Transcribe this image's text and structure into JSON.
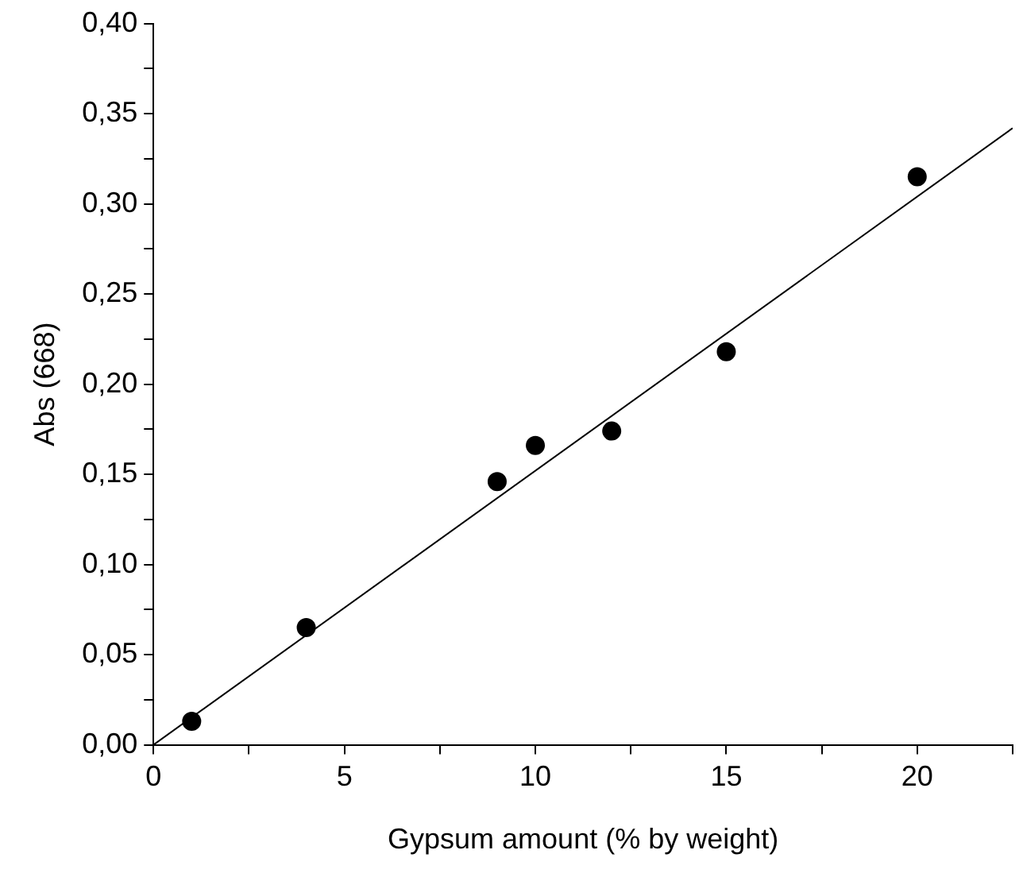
{
  "chart_data": {
    "type": "scatter",
    "xlabel": "Gypsum amount (% by weight)",
    "ylabel": "Abs (668)",
    "xlim": [
      0,
      22.5
    ],
    "ylim": [
      0,
      0.4
    ],
    "xticks": [
      0,
      {
        "value": 2.5,
        "label": null
      },
      5,
      {
        "value": 7.5,
        "label": null
      },
      10,
      {
        "value": 12.5,
        "label": null
      },
      15,
      {
        "value": 17.5,
        "label": null
      },
      20,
      {
        "value": 22.5,
        "label": null
      }
    ],
    "yticks": [
      {
        "value": 0,
        "label": "0,00"
      },
      {
        "value": 0.025,
        "label": null
      },
      {
        "value": 0.05,
        "label": "0,05"
      },
      {
        "value": 0.075,
        "label": null
      },
      {
        "value": 0.1,
        "label": "0,10"
      },
      {
        "value": 0.125,
        "label": null
      },
      {
        "value": 0.15,
        "label": "0,15"
      },
      {
        "value": 0.175,
        "label": null
      },
      {
        "value": 0.2,
        "label": "0,20"
      },
      {
        "value": 0.225,
        "label": null
      },
      {
        "value": 0.25,
        "label": "0,25"
      },
      {
        "value": 0.275,
        "label": null
      },
      {
        "value": 0.3,
        "label": "0,30"
      },
      {
        "value": 0.325,
        "label": null
      },
      {
        "value": 0.35,
        "label": "0,35"
      },
      {
        "value": 0.375,
        "label": null
      },
      {
        "value": 0.4,
        "label": "0,40"
      }
    ],
    "grid": false,
    "legend": false,
    "series": [
      {
        "type": "scatter",
        "color": "#000000",
        "marker": "circle",
        "x": [
          1,
          4,
          9,
          10,
          12,
          15,
          20
        ],
        "values": [
          0.013,
          0.065,
          0.146,
          0.166,
          0.174,
          0.218,
          0.315
        ]
      },
      {
        "type": "line",
        "color": "#000000",
        "marker": "none",
        "line_style": "solid",
        "x": [
          0,
          22.5
        ],
        "values": [
          0.0,
          0.342
        ]
      }
    ]
  }
}
